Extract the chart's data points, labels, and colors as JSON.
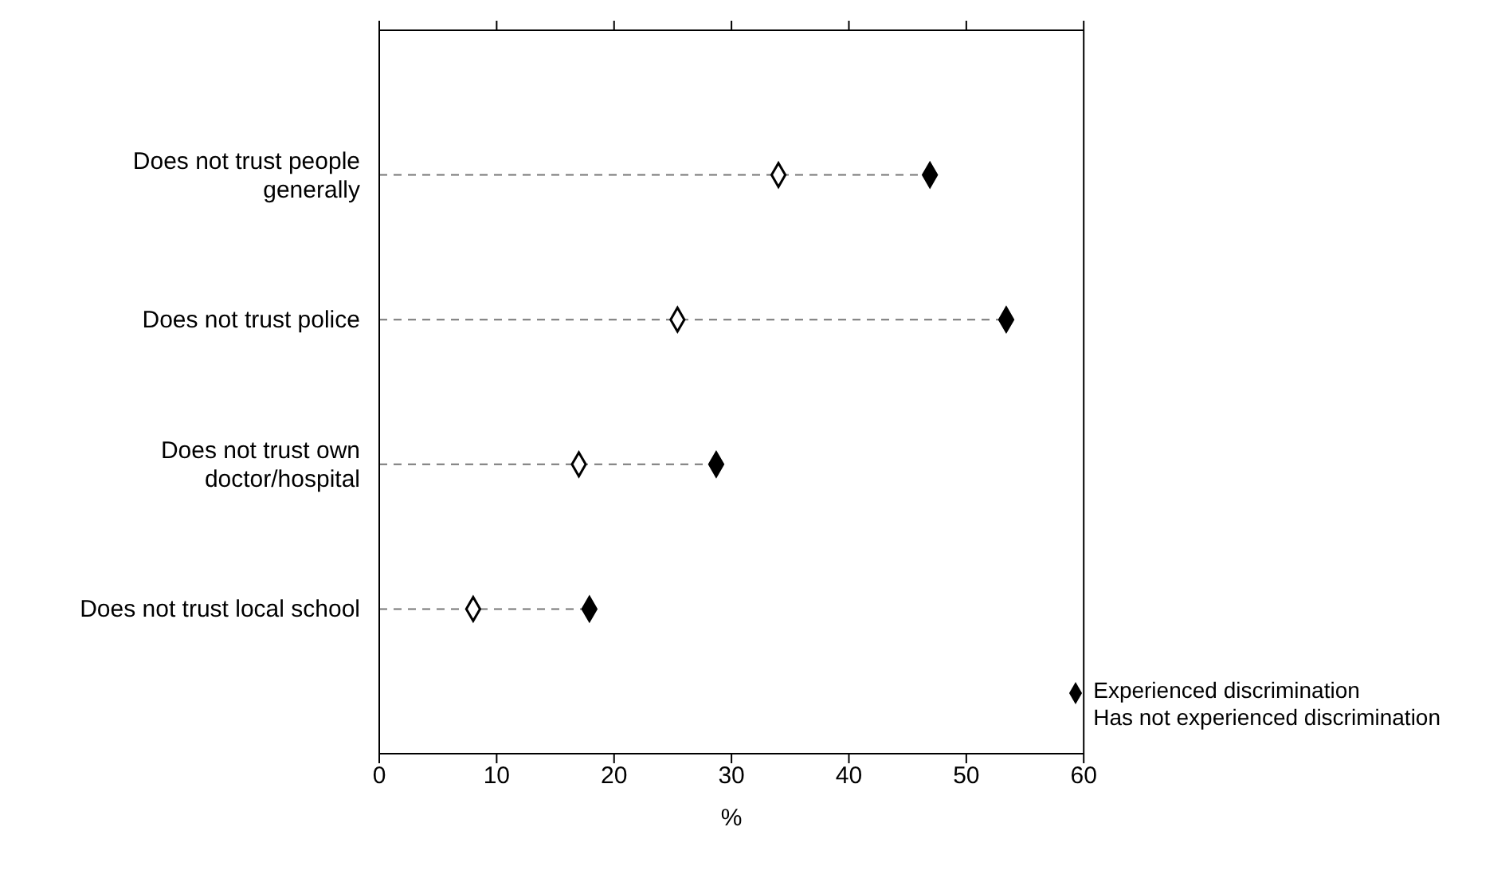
{
  "chart_data": {
    "type": "lollipop",
    "orientation": "horizontal",
    "categories": [
      "Does not trust people generally",
      "Does not trust police",
      "Does not trust own doctor/hospital",
      "Does not trust local school"
    ],
    "series": [
      {
        "name": "Experienced discrimination",
        "color": "#000000",
        "values": [
          46.9,
          53.4,
          28.7,
          17.9
        ]
      },
      {
        "name": "Has not experienced discrimination",
        "color": "#ffffff",
        "values": [
          34.0,
          25.4,
          17.0,
          8.0
        ]
      }
    ],
    "xlabel": "%",
    "xlim": [
      0,
      60
    ],
    "xticks": [
      0,
      10,
      20,
      30,
      40,
      50,
      60
    ],
    "marker": "diamond",
    "line_style": "dashed",
    "legend": "bottom right",
    "grid": false
  }
}
